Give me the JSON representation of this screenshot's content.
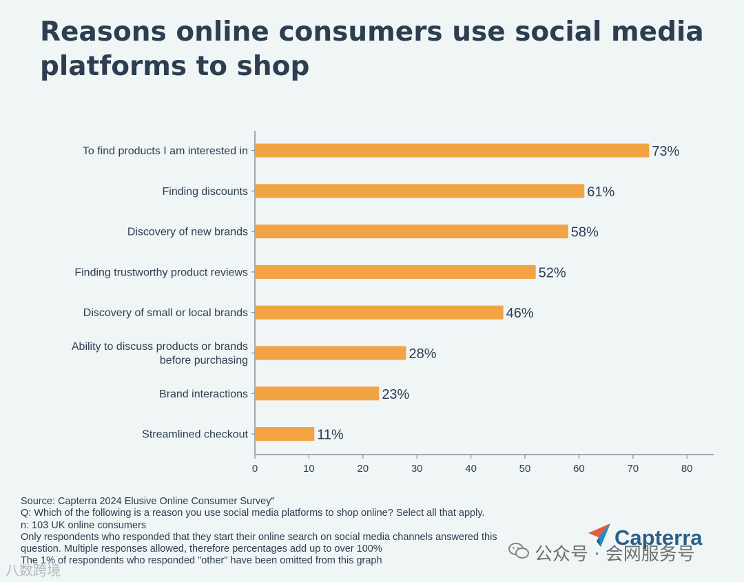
{
  "title": "Reasons online consumers use social media platforms to shop",
  "chart_data": {
    "type": "bar",
    "orientation": "horizontal",
    "title": "Reasons online consumers use social media platforms to shop",
    "categories": [
      [
        "To find products I am interested in"
      ],
      [
        "Finding discounts"
      ],
      [
        "Discovery of new brands"
      ],
      [
        "Finding trustworthy product reviews"
      ],
      [
        "Discovery of small or local brands"
      ],
      [
        "Ability to discuss products or brands",
        "before purchasing"
      ],
      [
        "Brand interactions"
      ],
      [
        "Streamlined checkout"
      ]
    ],
    "values": [
      73,
      61,
      58,
      52,
      46,
      28,
      23,
      11
    ],
    "value_labels": [
      "73%",
      "61%",
      "58%",
      "52%",
      "46%",
      "28%",
      "23%",
      "11%"
    ],
    "xticks": [
      0,
      10,
      20,
      30,
      40,
      50,
      60,
      70,
      80
    ],
    "xlim": [
      0,
      85
    ],
    "xlabel": "",
    "ylabel": "",
    "grid": false,
    "bar_color": "#f2a444"
  },
  "footnotes": [
    "Source: Capterra 2024 Elusive Online Consumer Survey\"",
    "Q: Which of the following is a reason you use social media platforms to shop online? Select all that apply.",
    "n: 103 UK online consumers",
    "Only respondents who responded that they start their online search on social media channels answered this",
    "question. Multiple responses allowed, therefore percentages add up to over 100%",
    "The 1% of respondents who responded \"other\" have been omitted from this graph"
  ],
  "logo": {
    "text": "Capterra",
    "icon": "capterra-arrow-icon"
  },
  "watermark": {
    "text": "公众号 · 会网服务号",
    "icon": "wechat-icon",
    "left_text": "八数跨境"
  },
  "colors": {
    "bar": "#f2a444",
    "text": "#2c3e50",
    "axis": "#8a8f94",
    "background": "#f0f5f6",
    "logo": "#2c5f8a"
  }
}
